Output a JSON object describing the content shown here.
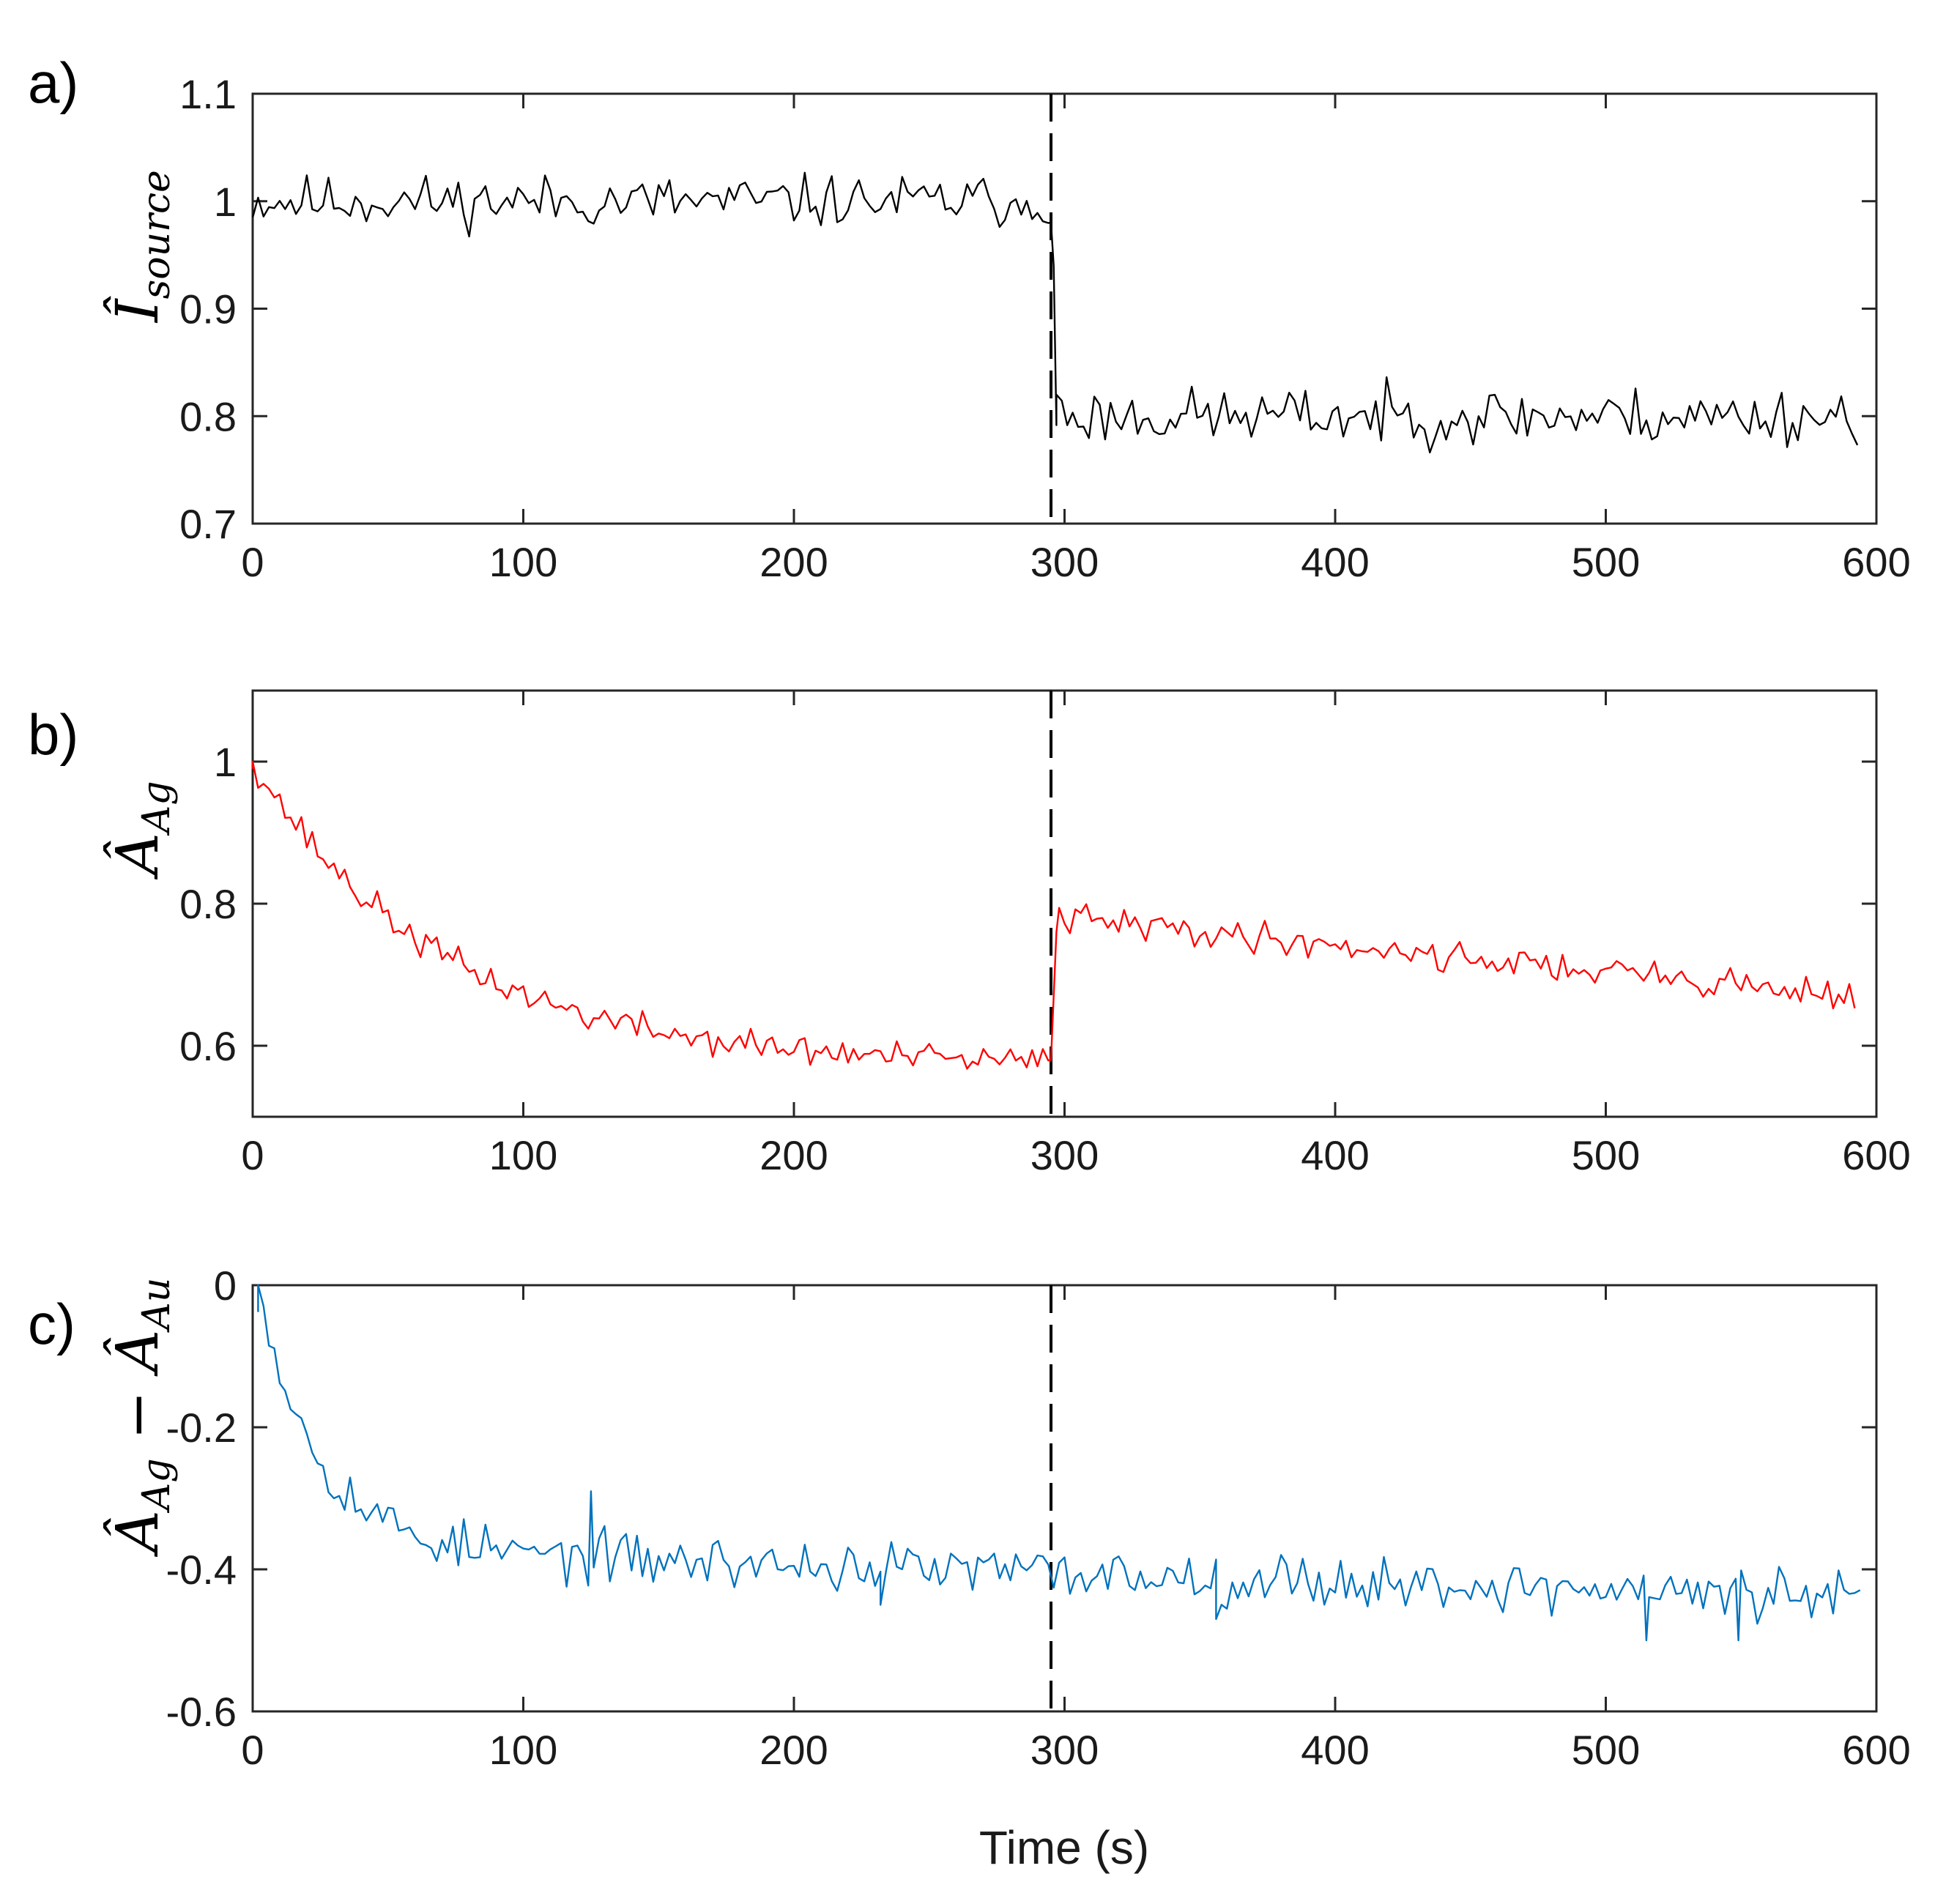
{
  "chart_data": [
    {
      "type": "line",
      "panel_label": "a)",
      "ylabel": {
        "symbol": "Î",
        "subscript": "source"
      },
      "xlabel": "",
      "xlim": [
        0,
        600
      ],
      "ylim": [
        0.7,
        1.1
      ],
      "xticks": [
        0,
        100,
        200,
        300,
        400,
        500,
        600
      ],
      "xtick_labels": [
        "0",
        "100",
        "200",
        "300",
        "400",
        "500",
        "600"
      ],
      "yticks": [
        0.7,
        0.8,
        0.9,
        1.0,
        1.1
      ],
      "ytick_labels": [
        "0.7",
        "0.8",
        "0.9",
        "1",
        "1.1"
      ],
      "event_line_x": 295,
      "series": [
        {
          "name": "I_source",
          "color": "#000000",
          "segments": [
            {
              "x0": 0,
              "x1": 295,
              "step": 2,
              "start": 1.0,
              "tau": 0,
              "end": 1.0,
              "noise": 0.012,
              "seed": 11
            },
            {
              "x0": 297,
              "x1": 593,
              "step": 2,
              "start": 0.8,
              "tau": 0,
              "end": 0.8,
              "noise": 0.013,
              "seed": 23
            }
          ],
          "points": [
            [
              295,
              0.98
            ],
            [
              296,
              0.94
            ],
            [
              297,
              0.82
            ]
          ]
        }
      ]
    },
    {
      "type": "line",
      "panel_label": "b)",
      "ylabel": {
        "symbol": "Â",
        "subscript": "Ag"
      },
      "xlabel": "",
      "xlim": [
        0,
        600
      ],
      "ylim": [
        0.5,
        1.1
      ],
      "xticks": [
        0,
        100,
        200,
        300,
        400,
        500,
        600
      ],
      "xtick_labels": [
        "0",
        "100",
        "200",
        "300",
        "400",
        "500",
        "600"
      ],
      "yticks": [
        0.6,
        0.8,
        1.0
      ],
      "ytick_labels": [
        "0.6",
        "0.8",
        "1"
      ],
      "event_line_x": 295,
      "series": [
        {
          "name": "A_Ag",
          "color": "#ff0000",
          "segments": [
            {
              "x0": 0,
              "x1": 295,
              "step": 2,
              "start": 1.0,
              "tau": 70,
              "end": 0.57,
              "noise": 0.011,
              "seed": 37
            },
            {
              "x0": 298,
              "x1": 593,
              "step": 2,
              "start": 0.78,
              "tau": 0,
              "end": 0.67,
              "noise": 0.011,
              "seed": 41
            }
          ],
          "points": [
            [
              0,
              1.0
            ],
            [
              295,
              0.58
            ],
            [
              297,
              0.76
            ]
          ]
        }
      ]
    },
    {
      "type": "line",
      "panel_label": "c)",
      "ylabel": {
        "symbol": "Â",
        "subscript": "Ag",
        "minus": " − ",
        "symbol2": "Â",
        "subscript2": "Au"
      },
      "xlabel": "Time (s)",
      "xlim": [
        0,
        600
      ],
      "ylim": [
        -0.6,
        0
      ],
      "xticks": [
        0,
        100,
        200,
        300,
        400,
        500,
        600
      ],
      "xtick_labels": [
        "0",
        "100",
        "200",
        "300",
        "400",
        "500",
        "600"
      ],
      "yticks": [
        -0.6,
        -0.4,
        -0.2,
        0
      ],
      "ytick_labels": [
        "-0.6",
        "-0.4",
        "-0.2",
        "0"
      ],
      "event_line_x": 295,
      "series": [
        {
          "name": "A_Ag_minus_A_Au",
          "color": "#0072bd",
          "segments": [
            {
              "x0": 2,
              "x1": 594,
              "step": 2,
              "start": 0.0,
              "tau": 22,
              "end": -0.37,
              "drift_to": -0.44,
              "noise": 0.018,
              "seed": 53
            }
          ],
          "points": [
            [
              2,
              0.0
            ],
            [
              125,
              -0.29
            ],
            [
              232,
              -0.45
            ],
            [
              356,
              -0.47
            ],
            [
              515,
              -0.5
            ],
            [
              549,
              -0.5
            ]
          ]
        }
      ]
    }
  ]
}
